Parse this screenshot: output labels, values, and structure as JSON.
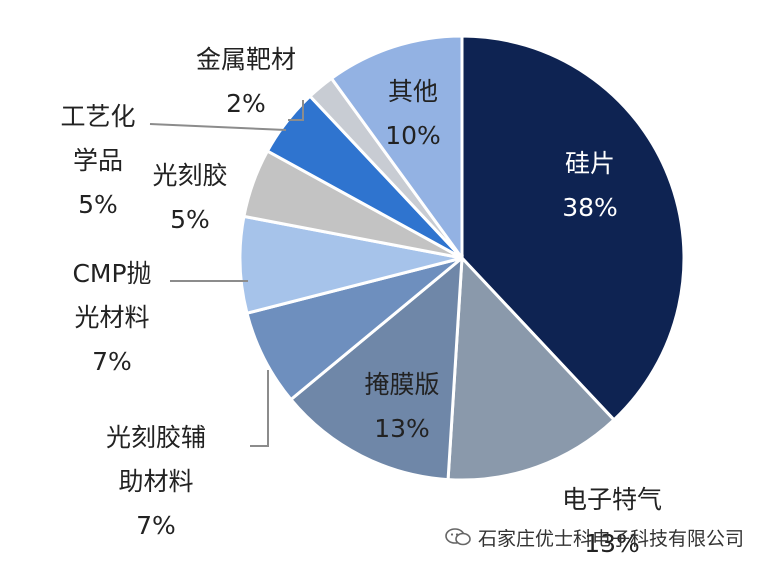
{
  "chart_data": {
    "type": "pie",
    "start_angle_deg": 0,
    "direction": "clockwise",
    "slices": [
      {
        "label": "硅片",
        "value": 38,
        "value_label": "38%",
        "color": "#0e2352"
      },
      {
        "label": "电子特气",
        "value": 13,
        "value_label": "13%",
        "color": "#8a99ab"
      },
      {
        "label": "掩膜版",
        "value": 13,
        "value_label": "13%",
        "color": "#6f87a8"
      },
      {
        "label": "光刻胶辅助材料",
        "value": 7,
        "value_label": "7%",
        "color": "#6e8fbe"
      },
      {
        "label": "CMP抛光材料",
        "value": 7,
        "value_label": "7%",
        "color": "#a6c3ea"
      },
      {
        "label": "光刻胶",
        "value": 5,
        "value_label": "5%",
        "color": "#c3c3c3"
      },
      {
        "label": "工艺化学品",
        "value": 5,
        "value_label": "5%",
        "color": "#2f74cf"
      },
      {
        "label": "金属靶材",
        "value": 2,
        "value_label": "2%",
        "color": "#c8ccd3"
      },
      {
        "label": "其他",
        "value": 10,
        "value_label": "10%",
        "color": "#93b2e3"
      }
    ]
  },
  "watermark": {
    "text": "石家庄优士科电子科技有限公司",
    "icon": "wechat-icon"
  }
}
